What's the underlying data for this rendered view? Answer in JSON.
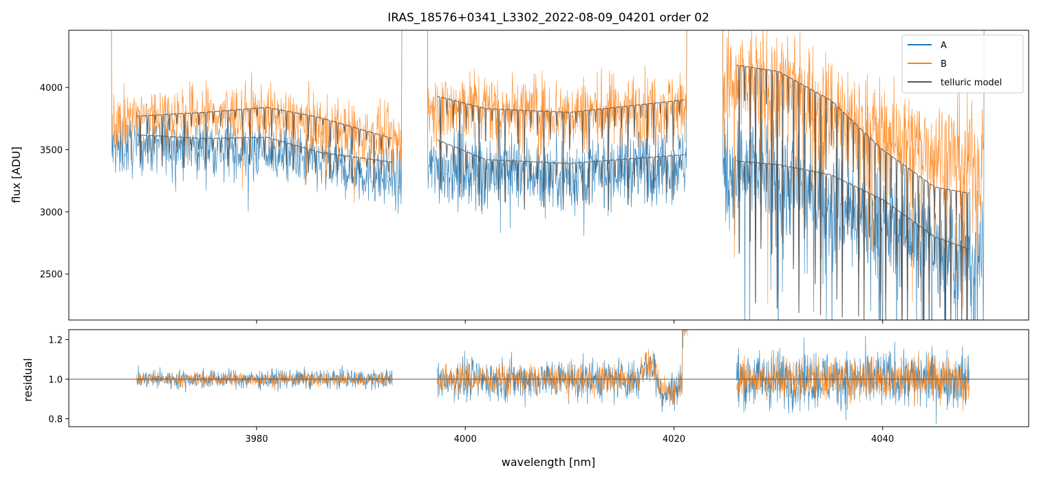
{
  "chart_data": [
    {
      "type": "line",
      "title": "IRAS_18576+0341_L3302_2022-08-09_04201  order 02",
      "xlabel": "",
      "ylabel": "flux [ADU]",
      "xlim": [
        3962,
        4054
      ],
      "ylim": [
        2130,
        4460
      ],
      "yticks": [
        2500,
        3000,
        3500,
        4000
      ],
      "xticks": [
        3980,
        4000,
        4020,
        4040
      ],
      "xtick_labels_shown": false,
      "legend": {
        "placement": "top-right",
        "entries": [
          "A",
          "B",
          "telluric model"
        ]
      },
      "segments": [
        [
          3966.0,
          3994.0
        ],
        [
          3996.3,
          4021.3
        ],
        [
          4024.6,
          4049.8
        ]
      ],
      "series": [
        {
          "name": "A",
          "color": "#1f77b4",
          "baseline": [
            [
              3966,
              3500
            ],
            [
              3970,
              3550
            ],
            [
              3980,
              3500
            ],
            [
              3994,
              3250
            ],
            [
              3996.3,
              3350
            ],
            [
              4000,
              3350
            ],
            [
              4010,
              3300
            ],
            [
              4021,
              3400
            ],
            [
              4024.6,
              3350
            ],
            [
              4030,
              3300
            ],
            [
              4040,
              2900
            ],
            [
              4049.8,
              2600
            ]
          ]
        },
        {
          "name": "B",
          "color": "#ff7f0e",
          "baseline": [
            [
              3966,
              3700
            ],
            [
              3970,
              3780
            ],
            [
              3980,
              3800
            ],
            [
              3994,
              3550
            ],
            [
              3996.3,
              3800
            ],
            [
              4000,
              3850
            ],
            [
              4010,
              3800
            ],
            [
              4021,
              3850
            ],
            [
              4024.6,
              4000
            ],
            [
              4030,
              4050
            ],
            [
              4040,
              3600
            ],
            [
              4049.8,
              3400
            ]
          ]
        },
        {
          "name": "telluric model",
          "color": "#555555",
          "curves": [
            {
              "for": "A",
              "points": [
                [
                  3968.5,
                  3620
                ],
                [
                  3975,
                  3590
                ],
                [
                  3981,
                  3600
                ],
                [
                  3986,
                  3480
                ],
                [
                  3993,
                  3400
                ]
              ]
            },
            {
              "for": "B",
              "points": [
                [
                  3968.5,
                  3770
                ],
                [
                  3975,
                  3800
                ],
                [
                  3981,
                  3840
                ],
                [
                  3986,
                  3760
                ],
                [
                  3993,
                  3590
                ]
              ]
            },
            {
              "for": "A",
              "points": [
                [
                  3997.3,
                  3580
                ],
                [
                  4002,
                  3420
                ],
                [
                  4010,
                  3390
                ],
                [
                  4021,
                  3460
                ]
              ]
            },
            {
              "for": "B",
              "points": [
                [
                  3997.3,
                  3930
                ],
                [
                  4002,
                  3830
                ],
                [
                  4010,
                  3800
                ],
                [
                  4021,
                  3900
                ]
              ]
            },
            {
              "for": "A",
              "points": [
                [
                  4026,
                  3410
                ],
                [
                  4030,
                  3380
                ],
                [
                  4035,
                  3300
                ],
                [
                  4040,
                  3100
                ],
                [
                  4045,
                  2800
                ],
                [
                  4048.3,
                  2700
                ]
              ]
            },
            {
              "for": "B",
              "points": [
                [
                  4026,
                  4180
                ],
                [
                  4030,
                  4130
                ],
                [
                  4035,
                  3900
                ],
                [
                  4040,
                  3500
                ],
                [
                  4045,
                  3200
                ],
                [
                  4048.3,
                  3150
                ]
              ]
            }
          ]
        }
      ]
    },
    {
      "type": "line",
      "title": "",
      "xlabel": "wavelength [nm]",
      "ylabel": "residual",
      "xlim": [
        3962,
        4054
      ],
      "ylim": [
        0.76,
        1.25
      ],
      "yticks": [
        0.8,
        1.0,
        1.2
      ],
      "ytick_labels": [
        "0.8",
        "1.0",
        "1.2"
      ],
      "xticks": [
        3980,
        4000,
        4020,
        4040
      ],
      "xtick_labels": [
        "3980",
        "4000",
        "4020",
        "4040"
      ],
      "reference_line": 1.0,
      "segments": [
        [
          3968.5,
          3993.0
        ],
        [
          3997.3,
          4021.3
        ],
        [
          4026.0,
          4048.3
        ]
      ],
      "series": [
        {
          "name": "A",
          "color": "#1f77b4"
        },
        {
          "name": "B",
          "color": "#ff7f0e"
        }
      ]
    }
  ]
}
